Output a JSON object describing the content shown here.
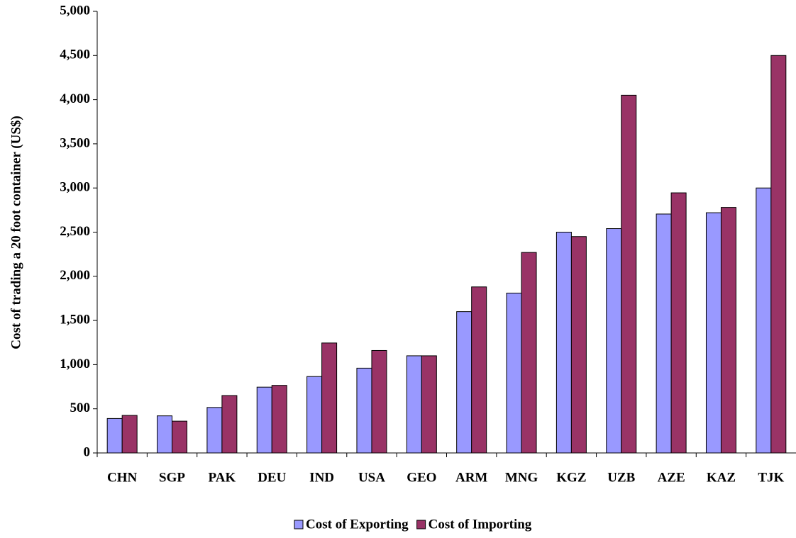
{
  "chart_data": {
    "type": "bar",
    "y_label": "Cost of trading a 20 foot container (US$)",
    "categories": [
      "CHN",
      "SGP",
      "PAK",
      "DEU",
      "IND",
      "USA",
      "GEO",
      "ARM",
      "MNG",
      "KGZ",
      "UZB",
      "AZE",
      "KAZ",
      "TJK"
    ],
    "series": [
      {
        "name": "Cost of Exporting",
        "color": "#9999ff",
        "values": [
          390,
          420,
          515,
          745,
          865,
          960,
          1100,
          1600,
          1810,
          2500,
          2540,
          2705,
          2720,
          3000
        ]
      },
      {
        "name": "Cost of Importing",
        "color": "#993366",
        "values": [
          425,
          360,
          650,
          765,
          1245,
          1160,
          1100,
          1880,
          2270,
          2450,
          4050,
          2945,
          2780,
          4500
        ]
      }
    ],
    "ylim": [
      0,
      5000
    ],
    "yticks": [
      0,
      500,
      {
        "value": 1000,
        "label": "1,000"
      },
      {
        "value": 1500,
        "label": "1,500"
      },
      {
        "value": 2000,
        "label": "2,000"
      },
      {
        "value": 2500,
        "label": "2,500"
      },
      {
        "value": 3000,
        "label": "3,000"
      },
      {
        "value": 3500,
        "label": "3,500"
      },
      {
        "value": 4000,
        "label": "4,000"
      },
      {
        "value": 4500,
        "label": "4,500"
      },
      {
        "value": 5000,
        "label": "5,000"
      }
    ],
    "legend": "bottom"
  }
}
